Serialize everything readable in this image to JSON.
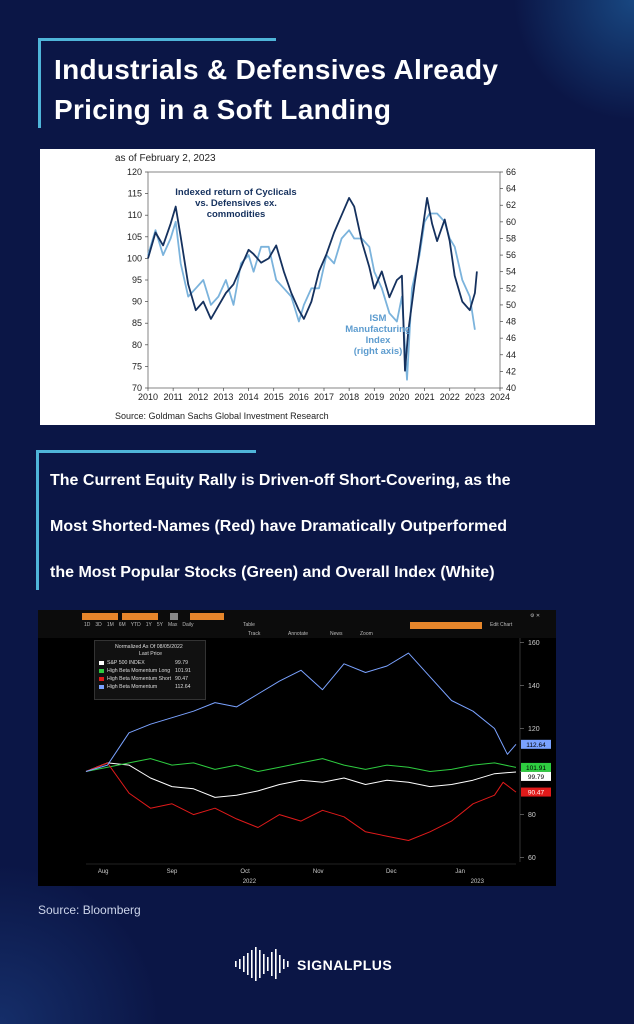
{
  "header": {
    "title_line1": "Industrials & Defensives Already",
    "title_line2": "Pricing in a Soft Landing"
  },
  "subheading": {
    "line1": "The Current Equity Rally is Driven-off Short-Covering, as the",
    "line2": "Most Shorted-Names (Red) have Dramatically Outperformed",
    "line3": "the Most Popular Stocks (Green) and Overall Index (White)"
  },
  "footer": {
    "source": "Source: Bloomberg",
    "brand": "SIGNALPLUS"
  },
  "colors": {
    "background": "#0b1646",
    "accent": "#4fb5d9",
    "series_dark": "#15315e",
    "series_light": "#7bb3dc"
  },
  "chart_data": [
    {
      "type": "line",
      "note": "as of February 2, 2023",
      "source": "Source: Goldman Sachs Global Investment Research",
      "x_ticks": [
        "2010",
        "2011",
        "2012",
        "2013",
        "2014",
        "2015",
        "2016",
        "2017",
        "2018",
        "2019",
        "2020",
        "2021",
        "2022",
        "2023",
        "2024"
      ],
      "xlim": [
        2010,
        2024
      ],
      "y_left_ticks": [
        "120",
        "115",
        "110",
        "105",
        "100",
        "95",
        "90",
        "85",
        "80",
        "75",
        "70"
      ],
      "ylim_left": [
        70,
        120
      ],
      "y_right_ticks": [
        "66",
        "64",
        "62",
        "60",
        "58",
        "56",
        "54",
        "52",
        "50",
        "48",
        "46",
        "44",
        "42",
        "40"
      ],
      "ylim_right": [
        40,
        66
      ],
      "annotation_cyclicals": [
        "Indexed return of Cyclicals",
        "vs. Defensives ex.",
        "commodities"
      ],
      "annotation_ism": [
        "ISM",
        "Manufacturing",
        "Index",
        "(right axis)"
      ],
      "series": [
        {
          "name": "Indexed return of Cyclicals vs. Defensives ex. commodities",
          "axis": "left",
          "x": [
            2010.0,
            2010.3,
            2010.6,
            2010.9,
            2011.1,
            2011.3,
            2011.6,
            2011.9,
            2012.2,
            2012.5,
            2012.8,
            2013.1,
            2013.4,
            2013.7,
            2014.0,
            2014.2,
            2014.5,
            2014.8,
            2015.1,
            2015.4,
            2015.7,
            2016.0,
            2016.2,
            2016.5,
            2016.8,
            2017.1,
            2017.4,
            2017.7,
            2018.0,
            2018.2,
            2018.5,
            2018.8,
            2019.0,
            2019.3,
            2019.6,
            2019.9,
            2020.1,
            2020.22,
            2020.35,
            2020.6,
            2020.9,
            2021.1,
            2021.3,
            2021.5,
            2021.8,
            2022.0,
            2022.2,
            2022.5,
            2022.8,
            2023.0,
            2023.08
          ],
          "y": [
            100,
            106,
            103,
            108,
            112,
            105,
            94,
            88,
            90,
            86,
            89,
            92,
            94,
            98,
            102,
            101,
            99,
            100,
            103,
            97,
            92,
            88,
            86,
            90,
            97,
            101,
            106,
            110,
            114,
            112,
            104,
            98,
            93,
            97,
            91,
            95,
            96,
            74,
            83,
            94,
            106,
            114,
            108,
            104,
            109,
            104,
            96,
            90,
            88,
            92,
            97
          ]
        },
        {
          "name": "ISM Manufacturing Index (right axis)",
          "axis": "right",
          "x": [
            2010.0,
            2010.3,
            2010.6,
            2010.9,
            2011.1,
            2011.3,
            2011.6,
            2011.9,
            2012.2,
            2012.5,
            2012.8,
            2013.1,
            2013.4,
            2013.7,
            2014.0,
            2014.2,
            2014.5,
            2014.8,
            2015.1,
            2015.4,
            2015.7,
            2016.0,
            2016.2,
            2016.5,
            2016.8,
            2017.1,
            2017.4,
            2017.7,
            2018.0,
            2018.2,
            2018.5,
            2018.8,
            2019.0,
            2019.3,
            2019.6,
            2019.9,
            2020.1,
            2020.3,
            2020.5,
            2020.8,
            2021.0,
            2021.2,
            2021.5,
            2021.8,
            2022.0,
            2022.2,
            2022.5,
            2022.8,
            2023.0
          ],
          "y": [
            56,
            59,
            56,
            58,
            60,
            55,
            51,
            52,
            53,
            50,
            51,
            53,
            50,
            55,
            56,
            54,
            57,
            57,
            53,
            52,
            51,
            48,
            50,
            52,
            52,
            56,
            55,
            58,
            59,
            58,
            58,
            57,
            54,
            52,
            49,
            48,
            51,
            41,
            52,
            56,
            60,
            61,
            61,
            60,
            58,
            57,
            53,
            51,
            47
          ]
        }
      ]
    },
    {
      "type": "line",
      "legend_title": "Normalized As Of 08/05/2022",
      "legend_subtitle": "Last Price",
      "toolbar_labels": [
        "Track",
        "Annotate",
        "News",
        "Zoom",
        "Table",
        "Edit Chart"
      ],
      "period_buttons": [
        "1D",
        "3D",
        "1M",
        "6M",
        "YTD",
        "1Y",
        "5Y",
        "Max",
        "Daily"
      ],
      "x_month_labels": [
        "Aug",
        "Sep",
        "Oct",
        "Nov",
        "Dec",
        "Jan"
      ],
      "x_year_labels": [
        "2022",
        "2023"
      ],
      "y_ticks": [
        "160",
        "140",
        "120",
        "100",
        "80",
        "60"
      ],
      "ylim": [
        58,
        162
      ],
      "series": [
        {
          "name": "S&P 500 INDEX",
          "last": "99.79",
          "color": "#ffffff",
          "x": [
            0,
            0.05,
            0.1,
            0.15,
            0.2,
            0.25,
            0.3,
            0.35,
            0.4,
            0.45,
            0.5,
            0.55,
            0.6,
            0.65,
            0.7,
            0.75,
            0.8,
            0.85,
            0.9,
            0.95,
            1.0
          ],
          "y": [
            100,
            104,
            103,
            97,
            93,
            92,
            88,
            89,
            91,
            94,
            96,
            95,
            97,
            94,
            96,
            95,
            93,
            94,
            96,
            99,
            99.79
          ]
        },
        {
          "name": "High Beta Momentum Long",
          "last": "101.91",
          "color": "#2ecc40",
          "x": [
            0,
            0.05,
            0.1,
            0.15,
            0.2,
            0.25,
            0.3,
            0.35,
            0.4,
            0.45,
            0.5,
            0.55,
            0.6,
            0.65,
            0.7,
            0.75,
            0.8,
            0.85,
            0.9,
            0.95,
            1.0
          ],
          "y": [
            100,
            102,
            104,
            106,
            103,
            104,
            101,
            103,
            100,
            102,
            104,
            106,
            103,
            101,
            103,
            102,
            100,
            101,
            103,
            104,
            101.91
          ]
        },
        {
          "name": "High Beta Momentum Short",
          "last": "90.47",
          "color": "#e01a1a",
          "x": [
            0,
            0.05,
            0.1,
            0.15,
            0.2,
            0.25,
            0.3,
            0.35,
            0.4,
            0.45,
            0.5,
            0.55,
            0.6,
            0.65,
            0.7,
            0.75,
            0.8,
            0.85,
            0.9,
            0.95,
            0.97,
            1.0
          ],
          "y": [
            100,
            104,
            90,
            83,
            85,
            80,
            83,
            78,
            74,
            80,
            77,
            82,
            79,
            72,
            70,
            68,
            72,
            77,
            85,
            89,
            95,
            90.47
          ]
        },
        {
          "name": "High Beta Momentum",
          "last": "112.64",
          "color": "#7aa2ff",
          "x": [
            0,
            0.05,
            0.1,
            0.15,
            0.2,
            0.25,
            0.3,
            0.35,
            0.4,
            0.45,
            0.5,
            0.55,
            0.6,
            0.65,
            0.7,
            0.75,
            0.8,
            0.85,
            0.9,
            0.95,
            0.98,
            1.0
          ],
          "y": [
            100,
            103,
            118,
            122,
            125,
            128,
            132,
            130,
            136,
            142,
            147,
            138,
            150,
            146,
            149,
            155,
            144,
            133,
            128,
            120,
            108,
            112.64
          ]
        }
      ]
    }
  ]
}
